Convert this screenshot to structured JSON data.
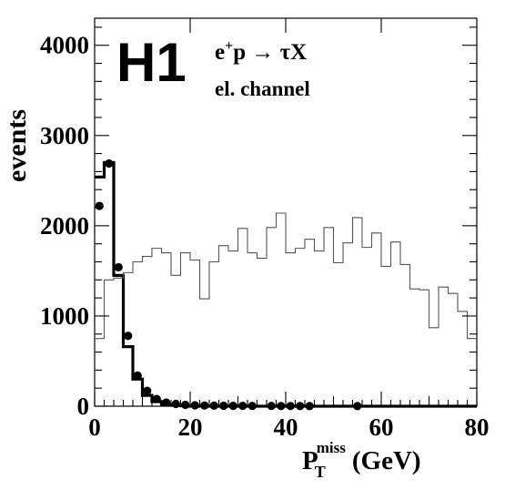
{
  "chart_data": {
    "type": "histogram",
    "logo": "H1",
    "process": {
      "base": "e",
      "sup": "+",
      "rest": "p → τX"
    },
    "channel": "el. channel",
    "ylabel": "events",
    "xlabel": {
      "base": "P",
      "sub": "T",
      "sup": "miss",
      "unit": "(GeV)"
    },
    "xlim": [
      0,
      80
    ],
    "ylim": [
      0,
      4300
    ],
    "xticks": [
      0,
      20,
      40,
      60,
      80
    ],
    "xtick_labels": [
      "0",
      "20",
      "40",
      "60",
      "80"
    ],
    "yticks": [
      0,
      1000,
      2000,
      3000,
      4000
    ],
    "ytick_labels": [
      "0",
      "1000",
      "2000",
      "3000",
      "4000"
    ],
    "bin_width": 2,
    "series": [
      {
        "style": "thick-step",
        "color": "#000000",
        "bin_edges_start": 0,
        "values": [
          2540,
          2700,
          1450,
          660,
          300,
          120,
          50,
          20,
          10,
          5,
          0,
          0,
          0,
          0,
          0,
          0,
          0,
          0,
          0,
          0,
          0,
          0,
          0,
          0,
          0,
          0,
          0,
          0,
          0,
          0,
          0,
          0,
          0,
          0,
          0,
          0,
          0,
          0,
          0,
          0
        ]
      },
      {
        "style": "thin-step",
        "color": "#555555",
        "bin_edges_start": 0,
        "values": [
          750,
          1400,
          1420,
          1480,
          1600,
          1660,
          1750,
          1700,
          1450,
          1700,
          1620,
          1190,
          1600,
          1780,
          1720,
          1970,
          1700,
          1640,
          1980,
          2140,
          1700,
          1750,
          1850,
          1720,
          1980,
          1590,
          1810,
          2090,
          1760,
          1920,
          1550,
          1820,
          1570,
          1300,
          1290,
          870,
          1320,
          1250,
          1050,
          750
        ]
      },
      {
        "style": "points",
        "color": "#000000",
        "x": [
          1,
          3,
          5,
          7,
          9,
          11,
          13,
          15,
          17,
          19,
          21,
          23,
          25,
          27,
          29,
          31,
          33,
          37,
          39,
          41,
          43,
          45,
          55
        ],
        "y": [
          2220,
          2690,
          1540,
          780,
          340,
          170,
          80,
          40,
          25,
          15,
          10,
          8,
          6,
          5,
          4,
          4,
          3,
          3,
          2,
          2,
          2,
          1,
          1
        ]
      }
    ]
  }
}
